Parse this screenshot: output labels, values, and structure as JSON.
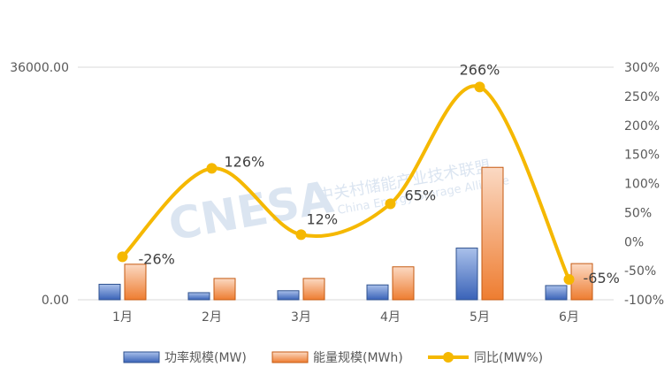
{
  "chart_data": {
    "type": "bar",
    "categories": [
      "1月",
      "2月",
      "3月",
      "4月",
      "5月",
      "6月"
    ],
    "series": [
      {
        "name": "功率规模(MW)",
        "kind": "bar",
        "axis": "left",
        "values": [
          2400,
          1100,
          1400,
          2300,
          8000,
          2200
        ],
        "color": "#4472C4"
      },
      {
        "name": "能量规模(MWh)",
        "kind": "bar",
        "axis": "left",
        "values": [
          5500,
          3300,
          3300,
          5100,
          20500,
          5600
        ],
        "color": "#ED7D31"
      },
      {
        "name": "同比(MW%)",
        "kind": "line",
        "axis": "right",
        "values": [
          -26,
          126,
          12,
          65,
          266,
          -65
        ],
        "labels": [
          "-26%",
          "126%",
          "12%",
          "65%",
          "266%",
          "-65%"
        ],
        "color": "#F5B800"
      }
    ],
    "left_axis": {
      "ylim": [
        0,
        36000
      ],
      "tick_labels": [
        "0.00",
        "36000.00"
      ]
    },
    "right_axis": {
      "ylim": [
        -100,
        300
      ],
      "tick_labels": [
        "-100%",
        "-50%",
        "0%",
        "50%",
        "100%",
        "150%",
        "200%",
        "250%",
        "300%"
      ]
    },
    "grid": "horizontal-at-left-axis-ends",
    "legend": "bottom-center"
  },
  "watermark": {
    "logo_text": "CNESA",
    "cn_text": "中关村储能产业技术联盟",
    "en_text": "China Energy Storage Alliance"
  }
}
